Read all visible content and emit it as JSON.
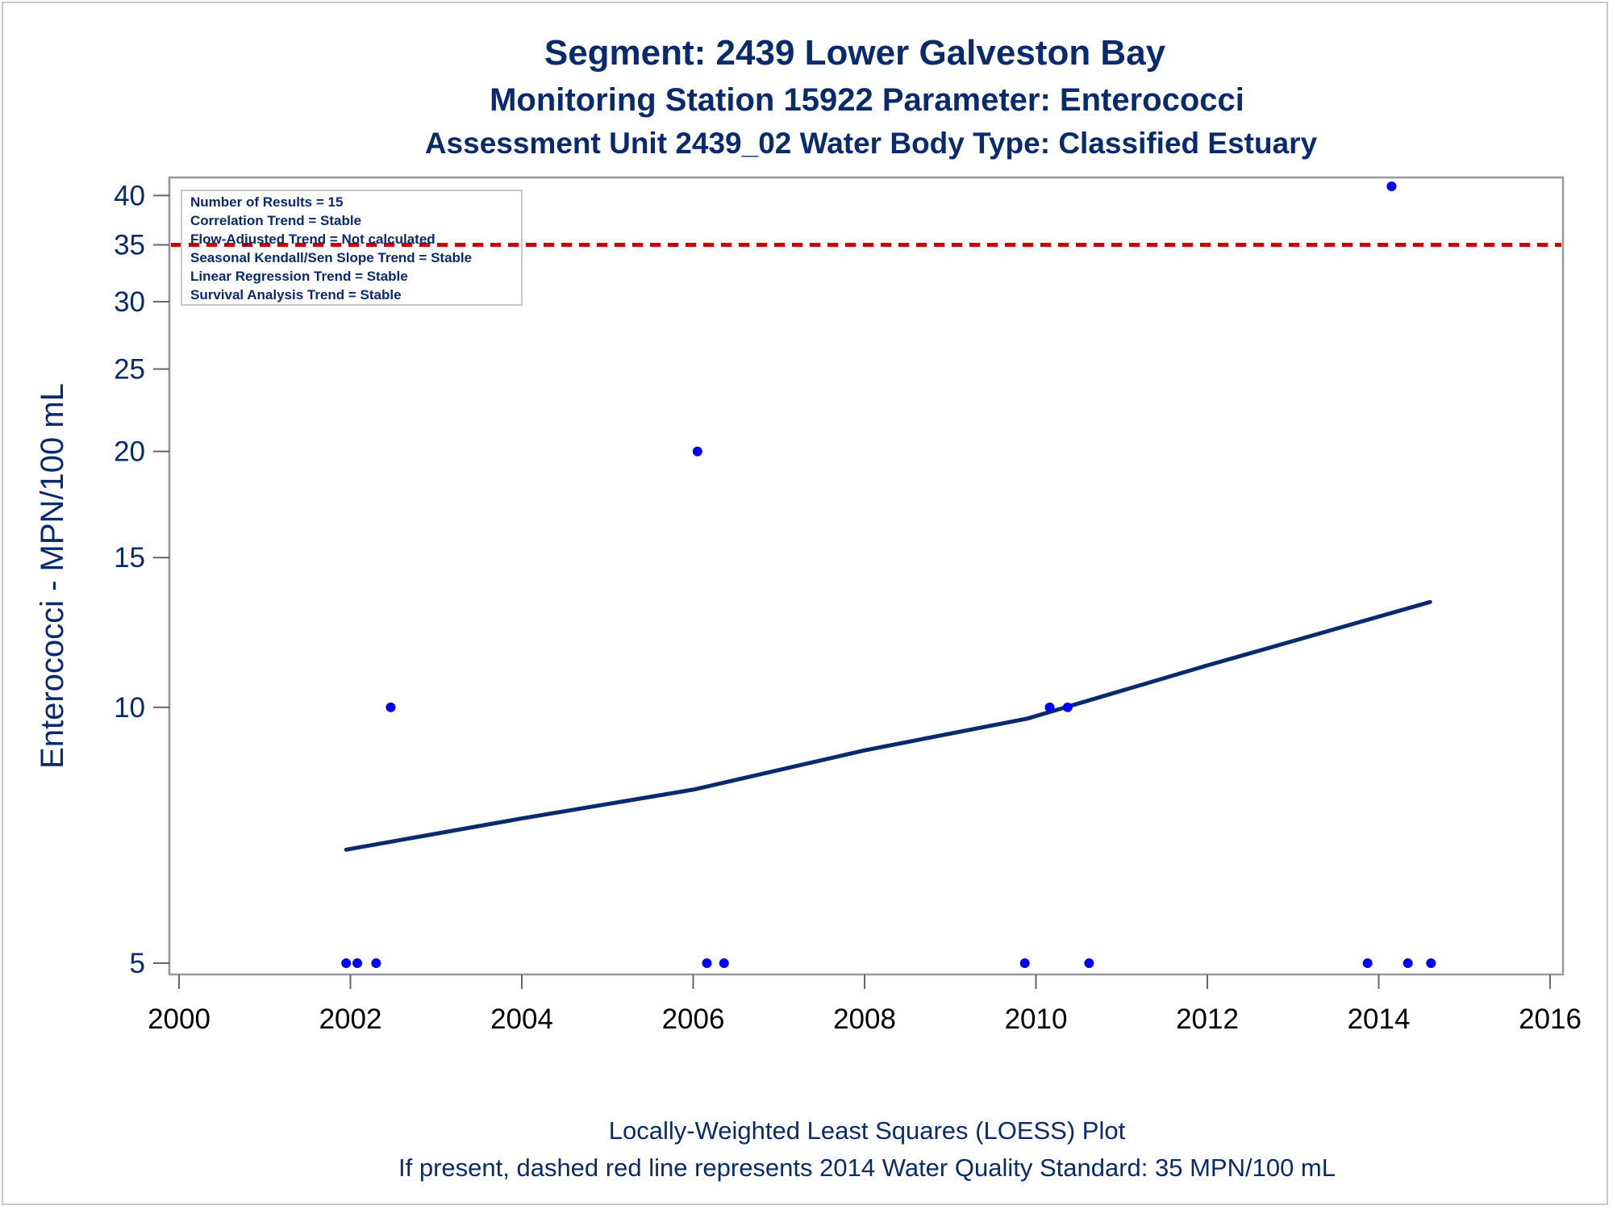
{
  "titles": {
    "line1": "Segment: 2439  Lower Galveston Bay",
    "line2": "Monitoring Station 15922 Parameter: Enterococci",
    "line3": "Assessment Unit 2439_02   Water Body Type: Classified Estuary"
  },
  "footnotes": {
    "line1": "Locally-Weighted Least Squares (LOESS) Plot",
    "line2": "If present, dashed red line represents 2014 Water Quality Standard: 35 MPN/100 mL"
  },
  "inset_box": [
    "Number of Results = 15",
    "Correlation Trend = Stable",
    "Flow-Adjusted Trend = Not calculated",
    "Seasonal Kendall/Sen Slope Trend = Stable",
    "Linear Regression Trend = Stable",
    "Survival Analysis Trend = Stable"
  ],
  "colors": {
    "text": "#0a2a6e",
    "points": "#0000ff",
    "loess": "#0a2a6e",
    "standard": "#cc0000",
    "frame": "#999999"
  },
  "chart_data": {
    "type": "scatter",
    "ylabel": "Enterococci - MPN/100 mL",
    "xlabel": "",
    "y_scale": "log",
    "xlim": [
      2000,
      2016
    ],
    "ylim": [
      4.85,
      42
    ],
    "x_ticks": [
      2000,
      2002,
      2004,
      2006,
      2008,
      2010,
      2012,
      2014,
      2016
    ],
    "y_ticks": [
      5,
      10,
      15,
      20,
      25,
      30,
      35,
      40
    ],
    "points": [
      {
        "x": 2001.95,
        "y": 5
      },
      {
        "x": 2002.08,
        "y": 5
      },
      {
        "x": 2002.3,
        "y": 5
      },
      {
        "x": 2002.47,
        "y": 10
      },
      {
        "x": 2006.05,
        "y": 20
      },
      {
        "x": 2006.16,
        "y": 5
      },
      {
        "x": 2006.36,
        "y": 5
      },
      {
        "x": 2009.87,
        "y": 5
      },
      {
        "x": 2010.16,
        "y": 10
      },
      {
        "x": 2010.37,
        "y": 10
      },
      {
        "x": 2010.62,
        "y": 5
      },
      {
        "x": 2013.87,
        "y": 5
      },
      {
        "x": 2014.15,
        "y": 41
      },
      {
        "x": 2014.34,
        "y": 5
      },
      {
        "x": 2014.61,
        "y": 5
      }
    ],
    "loess": [
      {
        "x": 2001.95,
        "y": 6.8
      },
      {
        "x": 2004.0,
        "y": 7.4
      },
      {
        "x": 2006.0,
        "y": 8.0
      },
      {
        "x": 2008.0,
        "y": 8.9
      },
      {
        "x": 2009.9,
        "y": 9.7
      },
      {
        "x": 2012.0,
        "y": 11.2
      },
      {
        "x": 2014.6,
        "y": 13.3
      }
    ],
    "standard_line": {
      "y": 35,
      "label": "2014 Water Quality Standard"
    }
  }
}
